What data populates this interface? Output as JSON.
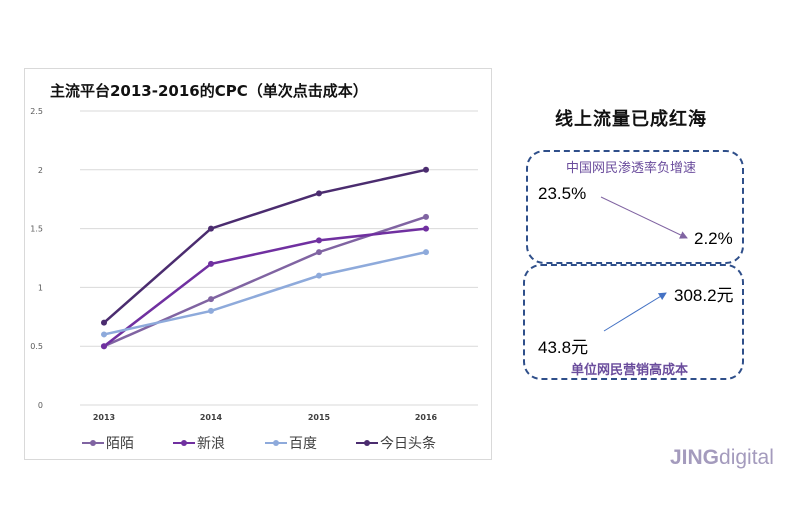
{
  "chart_data": {
    "type": "line",
    "title": "主流平台2013-2016的CPC（单次点击成本）",
    "xlabel": "",
    "ylabel": "",
    "categories": [
      "2013",
      "2014",
      "2015",
      "2016"
    ],
    "ylim": [
      0,
      2.5
    ],
    "yticks": [
      "0",
      "0.5",
      "1",
      "1.5",
      "2",
      "2.5"
    ],
    "grid": true,
    "legend_position": "bottom",
    "series": [
      {
        "name": "陌陌",
        "color": "#8064a2",
        "values": [
          0.5,
          0.9,
          1.3,
          1.6
        ]
      },
      {
        "name": "新浪",
        "color": "#7030a0",
        "values": [
          0.5,
          1.2,
          1.4,
          1.5
        ]
      },
      {
        "name": "百度",
        "color": "#8eaadb",
        "values": [
          0.6,
          0.8,
          1.1,
          1.3
        ]
      },
      {
        "name": "今日头条",
        "color": "#4b2c6f",
        "values": [
          0.7,
          1.5,
          1.8,
          2.0
        ]
      }
    ]
  },
  "side": {
    "title": "线上流量已成红海",
    "penetration": {
      "caption": "中国网民渗透率负增速",
      "from": "23.5%",
      "to": "2.2%",
      "arrow_color": "#8064a2"
    },
    "cost": {
      "caption": "单位网民营销高成本",
      "from": "43.8元",
      "to": "308.2元",
      "arrow_color": "#4472c4"
    },
    "border_color": "#2f4f8a"
  },
  "logo": {
    "bold": "JING",
    "light": "digital"
  }
}
